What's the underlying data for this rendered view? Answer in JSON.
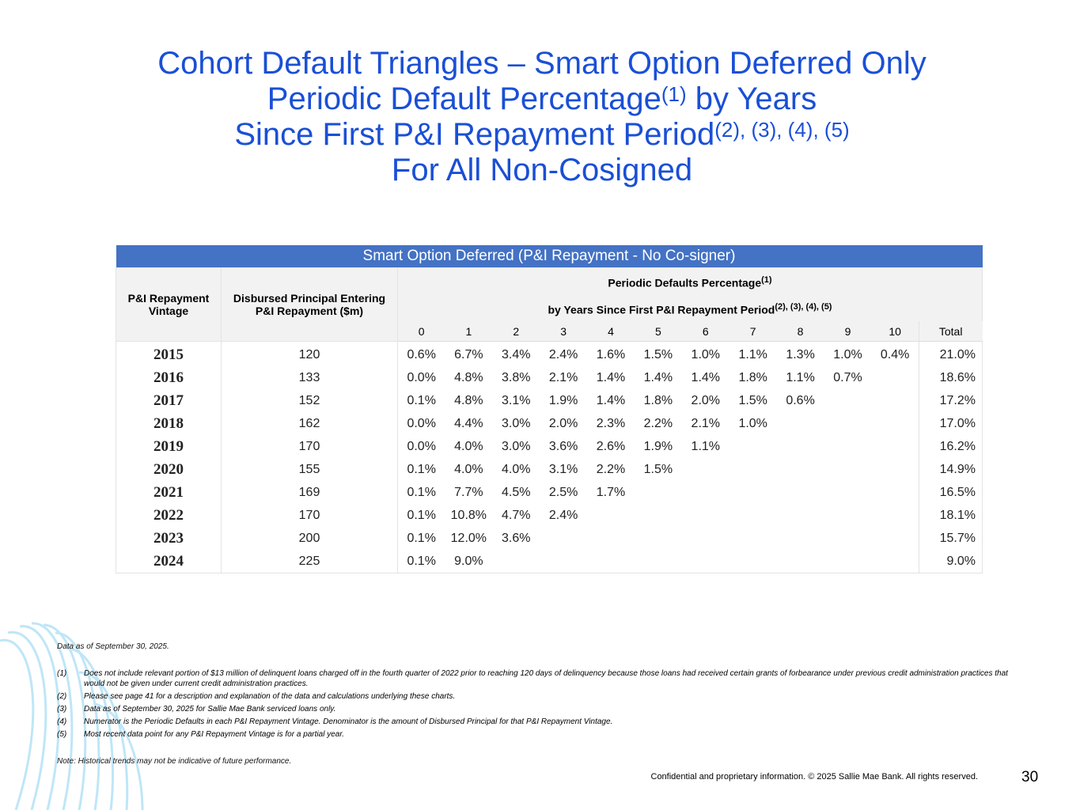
{
  "title": {
    "line1": "Cohort Default Triangles – Smart Option Deferred Only",
    "line2": "Periodic Default Percentage",
    "line2_sup": "(1)",
    "line2_end": "by Years",
    "line3": "Since First P&I Repayment Period",
    "line3_sup": "(2), (3), (4), (5)",
    "line4": "For All Non-Cosigned"
  },
  "table": {
    "banner": "Smart Option Deferred (P&I Repayment - No Co-signer)",
    "headers": {
      "vintage": "P&I Repayment Vintage",
      "principal": "Disbursed Principal Entering P&I Repayment ($m)",
      "periodic": "Periodic Defaults Percentage",
      "periodic_sup": "(1)",
      "periodic_line2": "by Years Since First P&I Repayment Period",
      "periodic_line2_sup": "(2), (3), (4), (5)",
      "periods": [
        "0",
        "1",
        "2",
        "3",
        "4",
        "5",
        "6",
        "7",
        "8",
        "9",
        "10"
      ],
      "total": "Total"
    },
    "rows": [
      {
        "vintage": 2015,
        "principal": 120,
        "periods": [
          "0.6%",
          "6.7%",
          "3.4%",
          "2.4%",
          "1.6%",
          "1.5%",
          "1.0%",
          "1.1%",
          "1.3%",
          "1.0%",
          "0.4%"
        ],
        "total": "21.0%"
      },
      {
        "vintage": 2016,
        "principal": 133,
        "periods": [
          "0.0%",
          "4.8%",
          "3.8%",
          "2.1%",
          "1.4%",
          "1.4%",
          "1.4%",
          "1.8%",
          "1.1%",
          "0.7%"
        ],
        "total": "18.6%"
      },
      {
        "vintage": 2017,
        "principal": 152,
        "periods": [
          "0.1%",
          "4.8%",
          "3.1%",
          "1.9%",
          "1.4%",
          "1.8%",
          "2.0%",
          "1.5%",
          "0.6%"
        ],
        "total": "17.2%"
      },
      {
        "vintage": 2018,
        "principal": 162,
        "periods": [
          "0.0%",
          "4.4%",
          "3.0%",
          "2.0%",
          "2.3%",
          "2.2%",
          "2.1%",
          "1.0%"
        ],
        "total": "17.0%"
      },
      {
        "vintage": 2019,
        "principal": 170,
        "periods": [
          "0.0%",
          "4.0%",
          "3.0%",
          "3.6%",
          "2.6%",
          "1.9%",
          "1.1%"
        ],
        "total": "16.2%"
      },
      {
        "vintage": 2020,
        "principal": 155,
        "periods": [
          "0.1%",
          "4.0%",
          "4.0%",
          "3.1%",
          "2.2%",
          "1.5%"
        ],
        "total": "14.9%"
      },
      {
        "vintage": 2021,
        "principal": 169,
        "periods": [
          "0.1%",
          "7.7%",
          "4.5%",
          "2.5%",
          "1.7%"
        ],
        "total": "16.5%"
      },
      {
        "vintage": 2022,
        "principal": 170,
        "periods": [
          "0.1%",
          "10.8%",
          "4.7%",
          "2.4%"
        ],
        "total": "18.1%"
      },
      {
        "vintage": 2023,
        "principal": 200,
        "periods": [
          "0.1%",
          "12.0%",
          "3.6%"
        ],
        "total": "15.7%"
      },
      {
        "vintage": 2024,
        "principal": 225,
        "periods": [
          "0.1%",
          "9.0%"
        ],
        "total": "9.0%"
      }
    ]
  },
  "footnotes": {
    "data_as_of": "Data as of September 30, 2025.",
    "notes": [
      {
        "marker": "(1)",
        "text": "Does not include relevant portion of $13 million of delinquent loans charged off in the fourth quarter of 2022 prior to reaching 120 days of delinquency because those loans had received certain grants of forbearance under previous credit administration practices that would not be given under current credit administration practices."
      },
      {
        "marker": "(2)",
        "text": "Please see page 41 for a description and explanation of the data and calculations underlying these charts."
      },
      {
        "marker": "(3)",
        "text": "Data as of September 30, 2025 for Sallie Mae Bank serviced loans only."
      },
      {
        "marker": "(4)",
        "text": "Numerator is the Periodic Defaults in each P&I Repayment Vintage. Denominator is the amount of Disbursed Principal for that P&I Repayment Vintage."
      },
      {
        "marker": "(5)",
        "text": "Most recent data point for any P&I Repayment Vintage is for a partial year."
      }
    ],
    "note": "Note: Historical trends may not be indicative of future performance."
  },
  "footer": {
    "confidential": "Confidential and proprietary information. © 2025 Sallie Mae Bank. All rights reserved.",
    "page": 30
  }
}
